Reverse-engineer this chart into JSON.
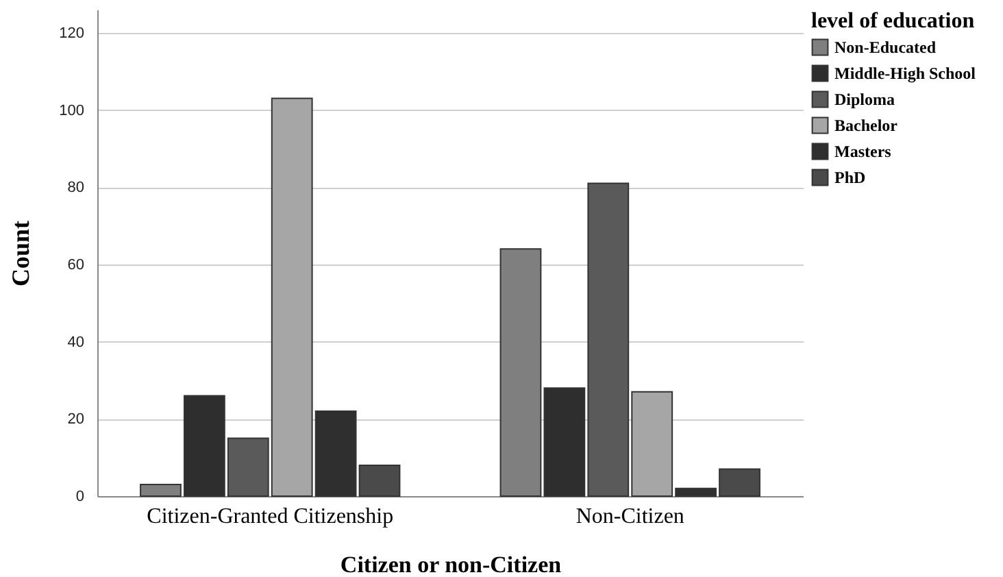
{
  "chart_data": {
    "type": "bar",
    "xlabel": "Citizen or non-Citizen",
    "ylabel": "Count",
    "legend_title": "level of education",
    "categories": [
      "Citizen-Granted Citizenship",
      "Non-Citizen"
    ],
    "series": [
      {
        "name": "Non-Educated",
        "color": "#7f7f7f",
        "values": [
          3,
          64
        ]
      },
      {
        "name": "Middle-High School",
        "color": "#2e2e2e",
        "values": [
          26,
          28
        ]
      },
      {
        "name": "Diploma",
        "color": "#5a5a5a",
        "values": [
          15,
          81
        ]
      },
      {
        "name": "Bachelor",
        "color": "#a6a6a6",
        "values": [
          103,
          27
        ]
      },
      {
        "name": "Masters",
        "color": "#2f2f2f",
        "values": [
          22,
          2
        ]
      },
      {
        "name": "PhD",
        "color": "#4a4a4a",
        "values": [
          8,
          7
        ]
      }
    ],
    "ylim": [
      0,
      126
    ],
    "yticks": [
      0,
      20,
      40,
      60,
      80,
      100,
      120
    ],
    "grid": "y",
    "legend": "top right"
  }
}
